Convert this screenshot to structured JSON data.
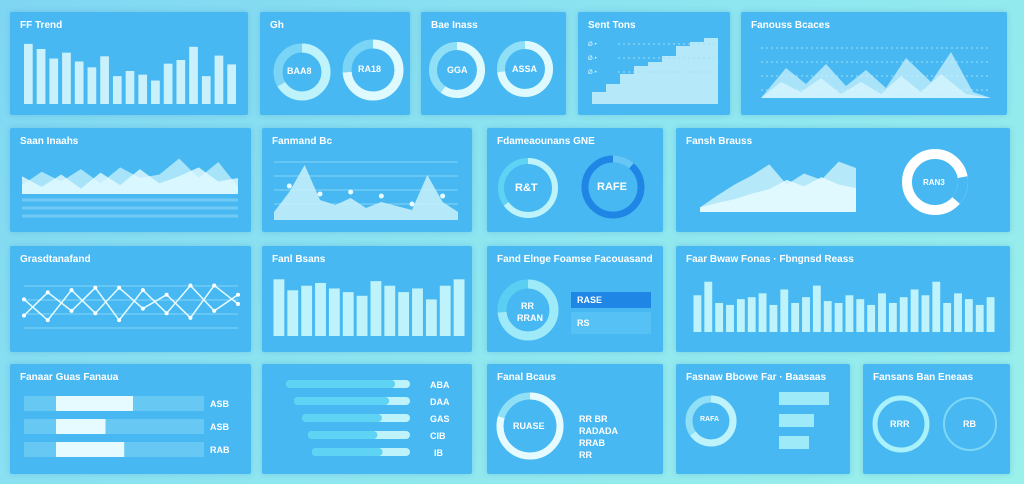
{
  "panels": [
    {
      "id": "p1",
      "title": "FF Trend"
    },
    {
      "id": "p2",
      "title": "Gh"
    },
    {
      "id": "p3",
      "title": "Bae Inass"
    },
    {
      "id": "p4",
      "title": "Sent Tons"
    },
    {
      "id": "p5",
      "title": "Fanouss Bcaces"
    },
    {
      "id": "p6",
      "title": "Saan Inaahs"
    },
    {
      "id": "p7",
      "title": "Fanmand Bc"
    },
    {
      "id": "p8",
      "title": "Fdameaounans GNE"
    },
    {
      "id": "p9",
      "title": "Fansh Brauss"
    },
    {
      "id": "p10",
      "title": "Grasdtanafand"
    },
    {
      "id": "p11",
      "title": "Fanl Bsans"
    },
    {
      "id": "p12",
      "title": "Fand Elnge Foamse Facouasand"
    },
    {
      "id": "p13",
      "title": "Faar Bwaw Fonas · Fbngnsd Reass"
    },
    {
      "id": "p14",
      "title": "Fanaar Guas Fanaua"
    },
    {
      "id": "p15",
      "title": ""
    },
    {
      "id": "p16",
      "title": "Fanal Bcaus"
    },
    {
      "id": "p17",
      "title": "Fasnaw Bbowe Far · Baasaas"
    },
    {
      "id": "p18",
      "title": "Fansans Ban Eneaas"
    }
  ],
  "donut_labels": {
    "p2a": "BAA8",
    "p2b": "RA18",
    "p3a": "GGA",
    "p3b": "ASSA",
    "p8a": "R&T",
    "p8b": "RAFE",
    "p9": "RAN3",
    "p12a": "RR",
    "p12b": "RRAN",
    "p16": "RUASE",
    "p17a": "RAFA",
    "p18a": "RRR",
    "p18b": "RB"
  },
  "p12_box": {
    "label": "RASE"
  },
  "p12_small": {
    "label": "RS"
  },
  "p14_labels": [
    "ASB",
    "ASB",
    "RAB"
  ],
  "p15_labels": [
    "ABA",
    "DAA",
    "GAS",
    "CIB",
    "IB"
  ],
  "p16_labels": [
    "RR BR",
    "RADADA",
    "RRAB",
    "RR"
  ],
  "chart_data": [
    {
      "panel": "p1",
      "type": "bar",
      "values": [
        82,
        75,
        62,
        70,
        58,
        50,
        65,
        38,
        45,
        40,
        32,
        55,
        60,
        78,
        38,
        66,
        54
      ]
    },
    {
      "panel": "p6",
      "type": "area",
      "series": [
        {
          "values": [
            10,
            25,
            14,
            28,
            12,
            30,
            18,
            22,
            40,
            18,
            36,
            8
          ]
        },
        {
          "values": [
            20,
            8,
            22,
            6,
            24,
            10,
            28,
            12,
            20,
            30,
            14,
            18
          ]
        }
      ]
    },
    {
      "panel": "p7",
      "type": "area",
      "values": [
        8,
        28,
        55,
        20,
        15,
        22,
        12,
        18,
        14,
        10,
        45,
        18,
        8
      ]
    },
    {
      "panel": "p9",
      "type": "area",
      "series": [
        {
          "values": [
            5,
            18,
            30,
            40,
            52,
            30,
            42,
            35,
            55,
            48
          ]
        },
        {
          "values": [
            5,
            10,
            14,
            20,
            25,
            35,
            28,
            38,
            30,
            26
          ]
        }
      ]
    },
    {
      "panel": "p10",
      "type": "line",
      "series": [
        {
          "values": [
            30,
            12,
            38,
            18,
            40,
            22,
            34,
            14,
            42,
            26
          ]
        },
        {
          "values": [
            16,
            36,
            20,
            40,
            12,
            38,
            18,
            42,
            20,
            34
          ]
        }
      ]
    },
    {
      "panel": "p11",
      "type": "bar",
      "values": [
        62,
        50,
        55,
        58,
        52,
        48,
        44,
        60,
        55,
        48,
        52,
        40,
        55,
        62
      ]
    },
    {
      "panel": "p13",
      "type": "bar",
      "values": [
        38,
        52,
        30,
        28,
        34,
        36,
        40,
        28,
        44,
        30,
        36,
        48,
        32,
        30,
        38,
        34,
        28,
        40,
        30,
        36,
        44,
        38,
        52,
        30,
        40,
        34,
        28,
        36
      ]
    },
    {
      "panel": "p14",
      "type": "bar",
      "values": [
        70,
        45,
        62
      ]
    },
    {
      "panel": "p15",
      "type": "bar",
      "values": [
        88,
        82,
        74,
        68,
        72
      ]
    }
  ]
}
